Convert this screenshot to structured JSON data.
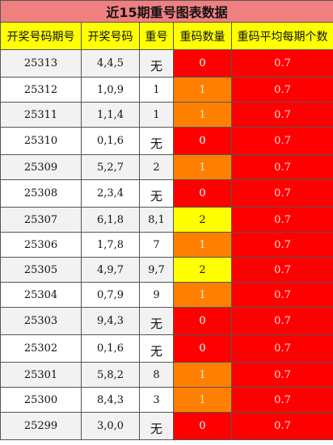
{
  "title": "近15期重号图表数据",
  "columns": [
    "开奖号码期号",
    "开奖号码",
    "重号",
    "重码数量",
    "重码平均每期个数"
  ],
  "rows": [
    {
      "issue": "25313",
      "numbers": "4,4,5",
      "repeat": "无",
      "count": "0",
      "avg": "0.7"
    },
    {
      "issue": "25312",
      "numbers": "1,0,9",
      "repeat": "1",
      "count": "1",
      "avg": "0.7"
    },
    {
      "issue": "25311",
      "numbers": "1,1,4",
      "repeat": "1",
      "count": "1",
      "avg": "0.7"
    },
    {
      "issue": "25310",
      "numbers": "0,1,6",
      "repeat": "无",
      "count": "0",
      "avg": "0.7"
    },
    {
      "issue": "25309",
      "numbers": "5,2,7",
      "repeat": "2",
      "count": "1",
      "avg": "0.7"
    },
    {
      "issue": "25308",
      "numbers": "2,3,4",
      "repeat": "无",
      "count": "0",
      "avg": "0.7"
    },
    {
      "issue": "25307",
      "numbers": "6,1,8",
      "repeat": "8,1",
      "count": "2",
      "avg": "0.7"
    },
    {
      "issue": "25306",
      "numbers": "1,7,8",
      "repeat": "7",
      "count": "1",
      "avg": "0.7"
    },
    {
      "issue": "25305",
      "numbers": "4,9,7",
      "repeat": "9,7",
      "count": "2",
      "avg": "0.7"
    },
    {
      "issue": "25304",
      "numbers": "0,7,9",
      "repeat": "9",
      "count": "1",
      "avg": "0.7"
    },
    {
      "issue": "25303",
      "numbers": "9,4,3",
      "repeat": "无",
      "count": "0",
      "avg": "0.7"
    },
    {
      "issue": "25302",
      "numbers": "0,1,6",
      "repeat": "无",
      "count": "0",
      "avg": "0.7"
    },
    {
      "issue": "25301",
      "numbers": "5,8,2",
      "repeat": "8",
      "count": "1",
      "avg": "0.7"
    },
    {
      "issue": "25300",
      "numbers": "8,4,3",
      "repeat": "3",
      "count": "1",
      "avg": "0.7"
    },
    {
      "issue": "25299",
      "numbers": "3,0,0",
      "repeat": "无",
      "count": "0",
      "avg": "0.7"
    }
  ],
  "colors": {
    "title_bg": "#f08080",
    "header_bg": "#ffff00",
    "count_0": "#ff0000",
    "count_1": "#ff8000",
    "count_2": "#ffff00",
    "avg_bg": "#ff0000"
  }
}
